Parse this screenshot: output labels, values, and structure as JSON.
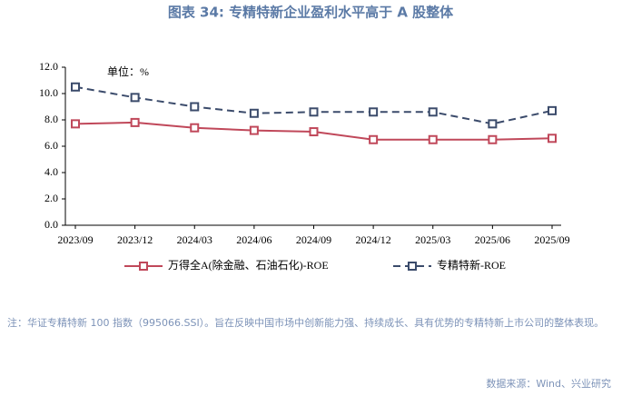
{
  "chart_data": {
    "type": "line",
    "title": "图表 34: 专精特新企业盈利水平高于 A 股整体",
    "unit_label": "单位：%",
    "categories": [
      "2023/09",
      "2023/12",
      "2024/03",
      "2024/06",
      "2024/09",
      "2024/12",
      "2025/03",
      "2025/06",
      "2025/09"
    ],
    "series": [
      {
        "name": "万得全A(除金融、石油石化)-ROE",
        "color": "#c0485a",
        "dashed": false,
        "values": [
          7.7,
          7.8,
          7.4,
          7.2,
          7.1,
          6.5,
          6.5,
          6.5,
          6.6
        ]
      },
      {
        "name": "专精特新-ROE",
        "color": "#3b4b6b",
        "dashed": true,
        "values": [
          10.5,
          9.7,
          9.0,
          8.5,
          8.6,
          8.6,
          8.6,
          7.7,
          8.7
        ]
      }
    ],
    "ylim": [
      0,
      12
    ],
    "yticks": [
      {
        "value": 0,
        "label": "0.0"
      },
      {
        "value": 2,
        "label": "2.0"
      },
      {
        "value": 4,
        "label": "4.0"
      },
      {
        "value": 6,
        "label": "6.0"
      },
      {
        "value": 8,
        "label": "8.0"
      },
      {
        "value": 10,
        "label": "10.0"
      },
      {
        "value": 12,
        "label": "12.0"
      }
    ],
    "grid": false,
    "note": "注：华证专精特新 100 指数（995066.SSI）。旨在反映中国市场中创新能力强、持续成长、具有优势的专精特新上市公司的整体表现。",
    "source": "数据来源：Wind、兴业研究"
  }
}
